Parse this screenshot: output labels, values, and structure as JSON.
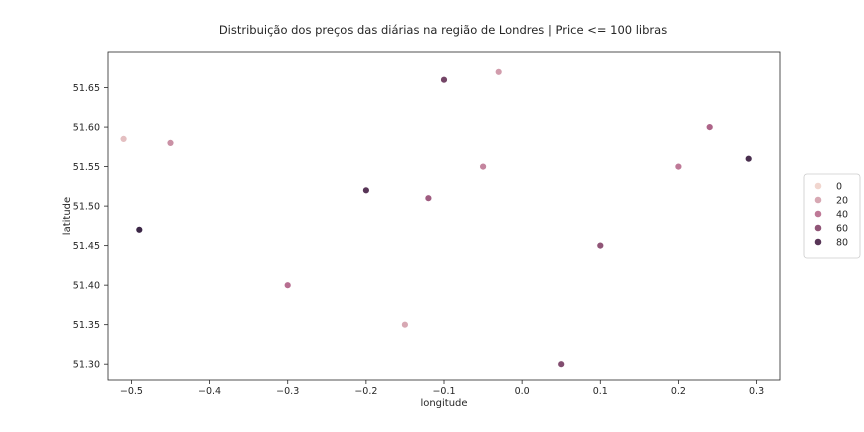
{
  "chart_data": {
    "type": "scatter",
    "title": "Distribuição dos preços das diárias na região de Londres | Price <= 100 libras",
    "xlabel": "longitude",
    "ylabel": "latitude",
    "xlim": [
      -0.53,
      0.33
    ],
    "ylim": [
      51.28,
      51.695
    ],
    "xticks": [
      -0.5,
      -0.4,
      -0.3,
      -0.2,
      -0.1,
      0.0,
      0.1,
      0.2,
      0.3
    ],
    "xtick_labels": [
      "−0.5",
      "−0.4",
      "−0.3",
      "−0.2",
      "−0.1",
      "0.0",
      "0.1",
      "0.2",
      "0.3"
    ],
    "yticks": [
      51.3,
      51.35,
      51.4,
      51.45,
      51.5,
      51.55,
      51.6,
      51.65
    ],
    "ytick_labels": [
      "51.30",
      "51.35",
      "51.40",
      "51.45",
      "51.50",
      "51.55",
      "51.60",
      "51.65"
    ],
    "grid": false,
    "legend_position": "right",
    "hue": "price",
    "legend": {
      "entries": [
        {
          "label": "0",
          "value": 0
        },
        {
          "label": "20",
          "value": 20
        },
        {
          "label": "40",
          "value": 40
        },
        {
          "label": "60",
          "value": 60
        },
        {
          "label": "80",
          "value": 80
        }
      ]
    },
    "colors": {
      "palette_low": "#f1d6cf",
      "palette_high": "#2d1e3e",
      "marker_edge": "#ffffff",
      "axis_edge": "#262626"
    },
    "points": [
      {
        "x": -0.12,
        "y": 51.51,
        "price": 55
      },
      {
        "x": -0.2,
        "y": 51.52,
        "price": 80
      },
      {
        "x": -0.05,
        "y": 51.55,
        "price": 35
      },
      {
        "x": -0.3,
        "y": 51.4,
        "price": 45
      },
      {
        "x": 0.1,
        "y": 51.45,
        "price": 60
      },
      {
        "x": -0.45,
        "y": 51.58,
        "price": 30
      },
      {
        "x": 0.2,
        "y": 51.55,
        "price": 40
      },
      {
        "x": -0.1,
        "y": 51.66,
        "price": 70
      },
      {
        "x": -0.15,
        "y": 51.35,
        "price": 20
      },
      {
        "x": 0.29,
        "y": 51.56,
        "price": 85
      },
      {
        "x": -0.49,
        "y": 51.47,
        "price": 90
      },
      {
        "x": 0.05,
        "y": 51.3,
        "price": 65
      },
      {
        "x": -0.03,
        "y": 51.67,
        "price": 25
      },
      {
        "x": -0.51,
        "y": 51.585,
        "price": 10
      },
      {
        "x": 0.24,
        "y": 51.6,
        "price": 50
      }
    ]
  }
}
